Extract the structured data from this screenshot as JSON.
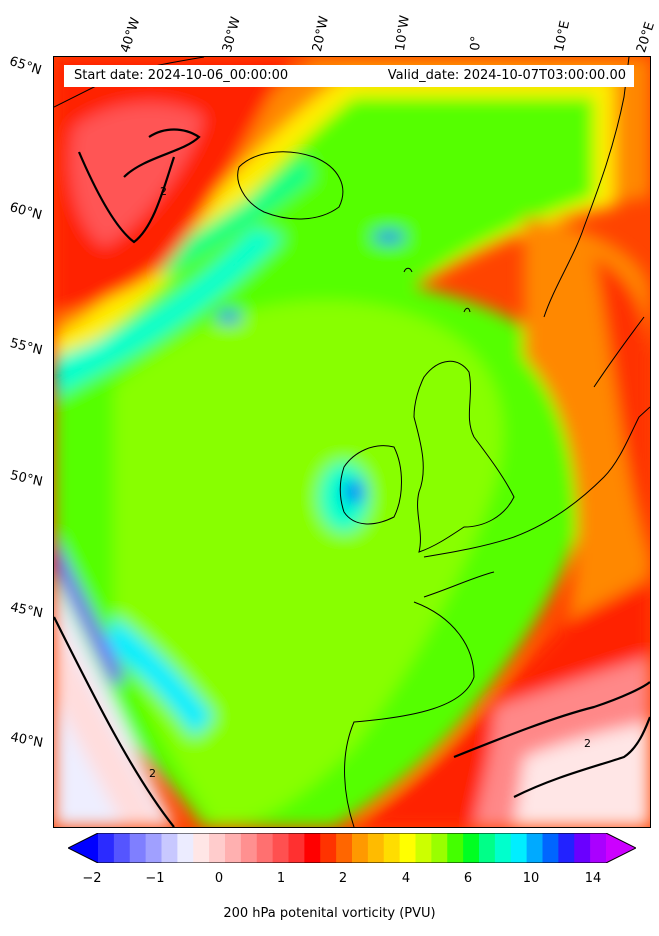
{
  "map": {
    "start_date": "Start date: 2024-10-06_00:00:00",
    "valid_date": "Valid_date: 2024-10-07T03:00:00.00",
    "lon_labels": [
      "40°W",
      "30°W",
      "20°W",
      "10°W",
      "0°",
      "10°E",
      "20°E"
    ],
    "lat_labels": [
      "65°N",
      "60°N",
      "55°N",
      "50°N",
      "45°N",
      "40°N"
    ],
    "contour_label": "2"
  },
  "colorbar": {
    "ticks": [
      "−2",
      "−1",
      "0",
      "1",
      "2",
      "4",
      "6",
      "10",
      "14"
    ],
    "label": "200 hPa potenital vorticity (PVU)",
    "colors": [
      "#0000ff",
      "#2b2bff",
      "#5555ff",
      "#7f7fff",
      "#a0a0ff",
      "#c8c8ff",
      "#ececff",
      "#ffe6e6",
      "#ffcccc",
      "#ffb0b0",
      "#ff9090",
      "#ff7070",
      "#ff5050",
      "#ff3030",
      "#ff0000",
      "#ff3300",
      "#ff6600",
      "#ff9900",
      "#ffbb00",
      "#ffdd00",
      "#ffff00",
      "#ccff00",
      "#99ff00",
      "#44ff00",
      "#00ff22",
      "#00ff88",
      "#00ffcc",
      "#00eeff",
      "#00aaff",
      "#0066ff",
      "#2222ff",
      "#6a00ff",
      "#aa00ff",
      "#cc00ff"
    ]
  }
}
